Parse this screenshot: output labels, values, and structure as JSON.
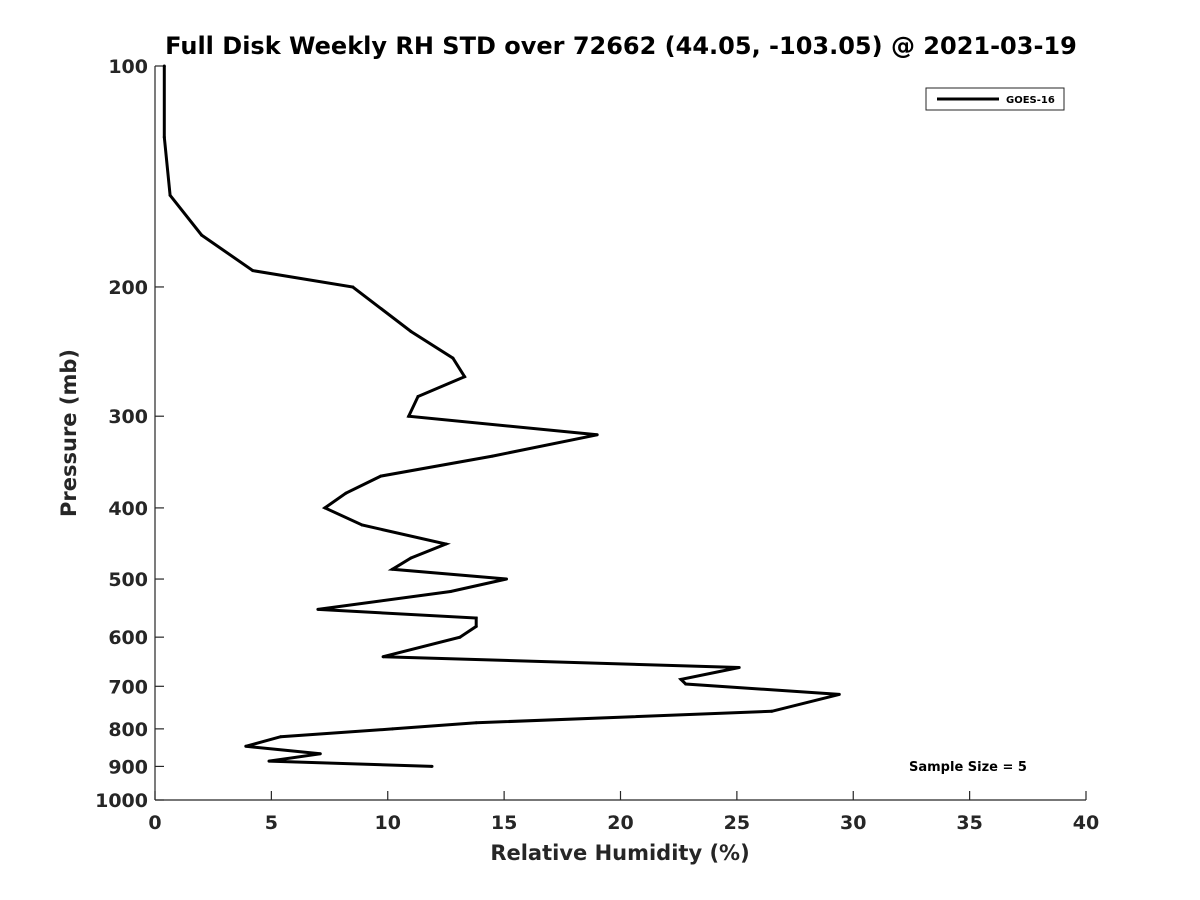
{
  "chart_data": {
    "type": "line",
    "title": "Full Disk Weekly RH STD over 72662 (44.05, -103.05) @ 2021-03-19",
    "xlabel": "Relative Humidity (%)",
    "ylabel": "Pressure (mb)",
    "xlim": [
      0,
      40
    ],
    "ylim": [
      100,
      1000
    ],
    "y_scale": "log",
    "y_reversed": true,
    "x_ticks": [
      0,
      5,
      10,
      15,
      20,
      25,
      30,
      35,
      40
    ],
    "y_ticks": [
      100,
      200,
      300,
      400,
      500,
      600,
      700,
      800,
      900,
      1000
    ],
    "grid": false,
    "legend_position": "top-right",
    "annotation": "Sample Size = 5",
    "series": [
      {
        "name": "GOES-16",
        "color": "#000000",
        "points": [
          {
            "x": 0.4,
            "y": 100
          },
          {
            "x": 0.4,
            "y": 125
          },
          {
            "x": 0.65,
            "y": 150
          },
          {
            "x": 2.0,
            "y": 170
          },
          {
            "x": 4.2,
            "y": 190
          },
          {
            "x": 8.5,
            "y": 200
          },
          {
            "x": 11.0,
            "y": 230
          },
          {
            "x": 12.8,
            "y": 250
          },
          {
            "x": 13.3,
            "y": 265
          },
          {
            "x": 11.3,
            "y": 282
          },
          {
            "x": 10.9,
            "y": 300
          },
          {
            "x": 19.0,
            "y": 318
          },
          {
            "x": 14.5,
            "y": 340
          },
          {
            "x": 9.7,
            "y": 362
          },
          {
            "x": 8.2,
            "y": 382
          },
          {
            "x": 7.3,
            "y": 400
          },
          {
            "x": 8.9,
            "y": 422
          },
          {
            "x": 12.5,
            "y": 448
          },
          {
            "x": 11.0,
            "y": 468
          },
          {
            "x": 10.2,
            "y": 485
          },
          {
            "x": 15.1,
            "y": 500
          },
          {
            "x": 12.7,
            "y": 520
          },
          {
            "x": 7.0,
            "y": 550
          },
          {
            "x": 13.8,
            "y": 565
          },
          {
            "x": 13.8,
            "y": 580
          },
          {
            "x": 13.1,
            "y": 600
          },
          {
            "x": 9.8,
            "y": 638
          },
          {
            "x": 25.1,
            "y": 660
          },
          {
            "x": 22.6,
            "y": 685
          },
          {
            "x": 22.8,
            "y": 695
          },
          {
            "x": 29.4,
            "y": 718
          },
          {
            "x": 26.5,
            "y": 757
          },
          {
            "x": 13.8,
            "y": 785
          },
          {
            "x": 10.2,
            "y": 800
          },
          {
            "x": 5.4,
            "y": 820
          },
          {
            "x": 3.9,
            "y": 845
          },
          {
            "x": 7.1,
            "y": 865
          },
          {
            "x": 4.9,
            "y": 885
          },
          {
            "x": 11.9,
            "y": 900
          }
        ]
      }
    ]
  }
}
